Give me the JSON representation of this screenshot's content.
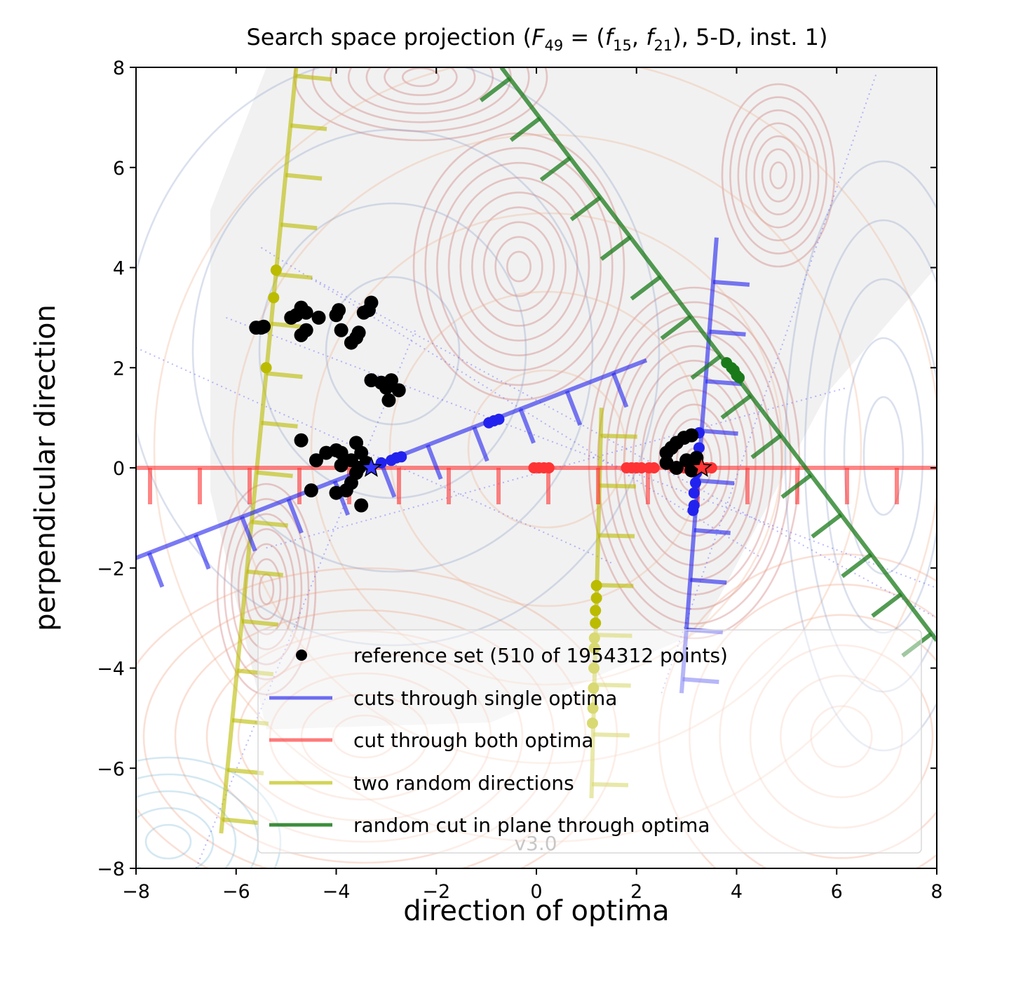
{
  "chart_data": {
    "type": "scatter",
    "title": "Search space projection (F₄₉ = (f₁₅, f₂₁), 5-D, inst. 1)",
    "title_parts": {
      "pre": "Search space projection (",
      "F": "F",
      "F_sub": "49",
      "eq": " = (",
      "f1": "f",
      "f1_sub": "15",
      "sep": ", ",
      "f2": "f",
      "f2_sub": "21",
      "post": "), 5-D, inst. 1)"
    },
    "xlabel": "direction of optima",
    "ylabel": "perpendicular direction",
    "xlim": [
      -8,
      8
    ],
    "ylim": [
      -8,
      8
    ],
    "xticks": [
      -8,
      -6,
      -4,
      -2,
      0,
      2,
      4,
      6,
      8
    ],
    "yticks": [
      -8,
      -6,
      -4,
      -2,
      0,
      2,
      4,
      6,
      8
    ],
    "tick_labels_x": [
      "−8",
      "−6",
      "−4",
      "−2",
      "0",
      "2",
      "4",
      "6",
      "8"
    ],
    "tick_labels_y": [
      "−8",
      "−6",
      "−4",
      "−2",
      "0",
      "2",
      "4",
      "6",
      "8"
    ],
    "grid": false,
    "legend_position": "bottom-right",
    "version_label": "v3.0",
    "optima": [
      {
        "x": -3.3,
        "y": 0.0,
        "color": "#3333ff"
      },
      {
        "x": 3.3,
        "y": 0.0,
        "color": "#ff3333"
      }
    ],
    "series": [
      {
        "name": "reference set (510 of 1954312 points)",
        "kind": "points",
        "color": "#000000",
        "points": [
          [
            -5.6,
            2.8
          ],
          [
            -5.5,
            2.8
          ],
          [
            -5.45,
            2.82
          ],
          [
            -4.9,
            3.0
          ],
          [
            -4.8,
            3.05
          ],
          [
            -4.7,
            3.2
          ],
          [
            -4.6,
            3.1
          ],
          [
            -4.7,
            2.65
          ],
          [
            -4.6,
            2.75
          ],
          [
            -4.35,
            3.0
          ],
          [
            -4.0,
            3.05
          ],
          [
            -3.95,
            3.15
          ],
          [
            -3.9,
            2.75
          ],
          [
            -3.7,
            2.5
          ],
          [
            -3.6,
            2.6
          ],
          [
            -3.55,
            2.7
          ],
          [
            -3.45,
            3.1
          ],
          [
            -3.3,
            3.3
          ],
          [
            -3.35,
            3.15
          ],
          [
            -3.3,
            1.75
          ],
          [
            -3.1,
            1.7
          ],
          [
            -3.0,
            1.6
          ],
          [
            -2.9,
            1.75
          ],
          [
            -2.75,
            1.55
          ],
          [
            -2.95,
            1.35
          ],
          [
            -4.7,
            0.55
          ],
          [
            -4.4,
            0.15
          ],
          [
            -4.2,
            0.3
          ],
          [
            -4.0,
            0.35
          ],
          [
            -3.9,
            0.3
          ],
          [
            -3.7,
            0.15
          ],
          [
            -3.6,
            0.5
          ],
          [
            -3.5,
            0.3
          ],
          [
            -3.4,
            0.1
          ],
          [
            -3.6,
            -0.1
          ],
          [
            -3.7,
            -0.3
          ],
          [
            -3.8,
            -0.45
          ],
          [
            -4.0,
            -0.5
          ],
          [
            -3.5,
            -0.75
          ],
          [
            -4.5,
            -0.45
          ],
          [
            -3.9,
            0.05
          ],
          [
            -3.55,
            0.0
          ],
          [
            2.6,
            0.3
          ],
          [
            2.7,
            0.4
          ],
          [
            2.8,
            0.5
          ],
          [
            2.95,
            0.6
          ],
          [
            3.1,
            0.65
          ],
          [
            2.6,
            0.1
          ],
          [
            2.8,
            0.0
          ],
          [
            3.0,
            0.15
          ],
          [
            3.2,
            0.2
          ],
          [
            3.1,
            -0.05
          ]
        ]
      },
      {
        "name": "cuts through single optima",
        "kind": "lines",
        "color": "#2222ee",
        "lines": [
          [
            [
              -8,
              -1.8
            ],
            [
              2.2,
              2.15
            ]
          ],
          [
            [
              2.9,
              -4.5
            ],
            [
              3.6,
              4.6
            ]
          ]
        ],
        "points": [
          [
            -3.1,
            0.1
          ],
          [
            -2.9,
            0.15
          ],
          [
            -2.8,
            0.2
          ],
          [
            -2.7,
            0.22
          ],
          [
            -0.95,
            0.9
          ],
          [
            -0.85,
            0.94
          ],
          [
            -0.75,
            0.97
          ],
          [
            3.25,
            0.7
          ],
          [
            3.25,
            0.4
          ],
          [
            3.22,
            0.1
          ],
          [
            3.2,
            -0.1
          ],
          [
            3.18,
            -0.3
          ],
          [
            3.15,
            -0.5
          ],
          [
            3.15,
            -0.75
          ],
          [
            3.13,
            -0.85
          ]
        ]
      },
      {
        "name": "cut through both optima",
        "kind": "lines",
        "color": "#ff3333",
        "lines": [
          [
            [
              -8,
              0
            ],
            [
              8,
              0
            ]
          ]
        ],
        "points": [
          [
            -0.05,
            0
          ],
          [
            0.05,
            0
          ],
          [
            0.15,
            0
          ],
          [
            0.25,
            0
          ],
          [
            1.8,
            0
          ],
          [
            1.9,
            0
          ],
          [
            2.0,
            0
          ],
          [
            2.1,
            0
          ],
          [
            2.25,
            0
          ],
          [
            2.35,
            0
          ],
          [
            2.75,
            0
          ],
          [
            2.85,
            0
          ],
          [
            2.95,
            0
          ],
          [
            3.1,
            0
          ],
          [
            3.3,
            0
          ],
          [
            3.4,
            0
          ],
          [
            3.5,
            0
          ]
        ]
      },
      {
        "name": "two random directions",
        "kind": "lines",
        "color": "#bbbb00",
        "lines": [
          [
            [
              -6.3,
              -7.3
            ],
            [
              -4.8,
              8.0
            ]
          ],
          [
            [
              1.1,
              -6.6
            ],
            [
              1.3,
              1.2
            ]
          ]
        ],
        "points": [
          [
            -5.2,
            3.95
          ],
          [
            -5.25,
            3.4
          ],
          [
            -5.4,
            2.0
          ],
          [
            1.2,
            -2.35
          ],
          [
            1.2,
            -2.6
          ],
          [
            1.18,
            -2.85
          ],
          [
            1.18,
            -3.1
          ],
          [
            1.16,
            -3.4
          ],
          [
            1.16,
            -3.6
          ],
          [
            1.15,
            -4.0
          ],
          [
            1.14,
            -4.4
          ],
          [
            1.13,
            -4.8
          ],
          [
            1.12,
            -5.1
          ]
        ]
      },
      {
        "name": "random cut in plane through optima",
        "kind": "lines",
        "color": "#1a7a1a",
        "lines": [
          [
            [
              -0.7,
              8.0
            ],
            [
              8,
              -3.45
            ]
          ]
        ],
        "points": [
          [
            3.8,
            2.1
          ],
          [
            3.9,
            2.0
          ],
          [
            3.95,
            1.95
          ],
          [
            4.0,
            1.85
          ],
          [
            4.05,
            1.8
          ]
        ]
      }
    ]
  }
}
